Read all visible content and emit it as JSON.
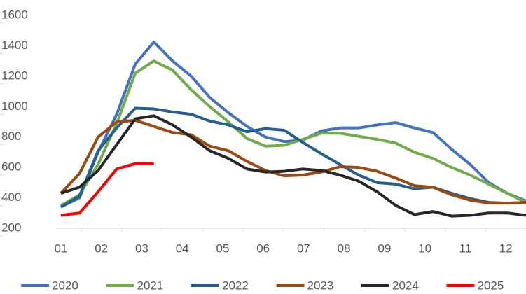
{
  "chart_data": {
    "type": "line",
    "x": [
      1.0,
      1.46,
      1.92,
      2.38,
      2.84,
      3.3,
      3.76,
      4.22,
      4.68,
      5.14,
      5.6,
      6.06,
      6.52,
      6.98,
      7.44,
      7.9,
      8.36,
      8.82,
      9.28,
      9.74,
      10.2,
      10.66,
      11.12,
      11.58,
      12.04,
      12.5
    ],
    "xlim": [
      0.88,
      12.5
    ],
    "xticks": [
      {
        "value": 1,
        "label": "01"
      },
      {
        "value": 2,
        "label": "02"
      },
      {
        "value": 3,
        "label": "03"
      },
      {
        "value": 4,
        "label": "04"
      },
      {
        "value": 5,
        "label": "05"
      },
      {
        "value": 6,
        "label": "06"
      },
      {
        "value": 7,
        "label": "07"
      },
      {
        "value": 8,
        "label": "08"
      },
      {
        "value": 9,
        "label": "09"
      },
      10,
      11,
      12
    ],
    "ylim": [
      200,
      1600
    ],
    "yticks": [
      200,
      400,
      600,
      800,
      1000,
      1200,
      1400,
      1600
    ],
    "grid": false,
    "legend": "bottom",
    "series": [
      {
        "name": "2020",
        "color": "#4472c4",
        "values": [
          340,
          400,
          700,
          950,
          1280,
          1425,
          1300,
          1200,
          1060,
          960,
          870,
          800,
          770,
          780,
          840,
          860,
          860,
          880,
          895,
          860,
          830,
          720,
          620,
          500,
          430,
          380
        ]
      },
      {
        "name": "2021",
        "color": "#70ad47",
        "values": [
          350,
          420,
          620,
          890,
          1220,
          1300,
          1240,
          1110,
          1000,
          900,
          790,
          740,
          745,
          785,
          825,
          825,
          805,
          785,
          760,
          700,
          660,
          600,
          550,
          490,
          430,
          370
        ]
      },
      {
        "name": "2022",
        "color": "#255e91",
        "values": [
          340,
          410,
          710,
          860,
          990,
          985,
          965,
          950,
          905,
          880,
          835,
          855,
          845,
          765,
          690,
          620,
          550,
          500,
          490,
          460,
          470,
          430,
          395,
          370,
          365,
          370
        ]
      },
      {
        "name": "2023",
        "color": "#9e480e",
        "values": [
          430,
          560,
          800,
          900,
          910,
          870,
          830,
          815,
          740,
          710,
          640,
          580,
          545,
          550,
          570,
          605,
          600,
          575,
          530,
          480,
          470,
          420,
          385,
          365,
          365,
          370
        ]
      },
      {
        "name": "2024",
        "color": "#262626",
        "values": [
          430,
          470,
          580,
          750,
          920,
          940,
          880,
          800,
          710,
          660,
          590,
          570,
          575,
          590,
          580,
          550,
          510,
          440,
          350,
          290,
          310,
          280,
          285,
          300,
          300,
          285
        ]
      },
      {
        "name": "2025",
        "color": "#ff0000",
        "values": [
          285,
          300,
          440,
          590,
          625,
          625,
          null,
          null,
          null,
          null,
          null,
          null,
          null,
          null,
          null,
          null,
          null,
          null,
          null,
          null,
          null,
          null,
          null,
          null,
          null,
          null
        ]
      }
    ]
  }
}
